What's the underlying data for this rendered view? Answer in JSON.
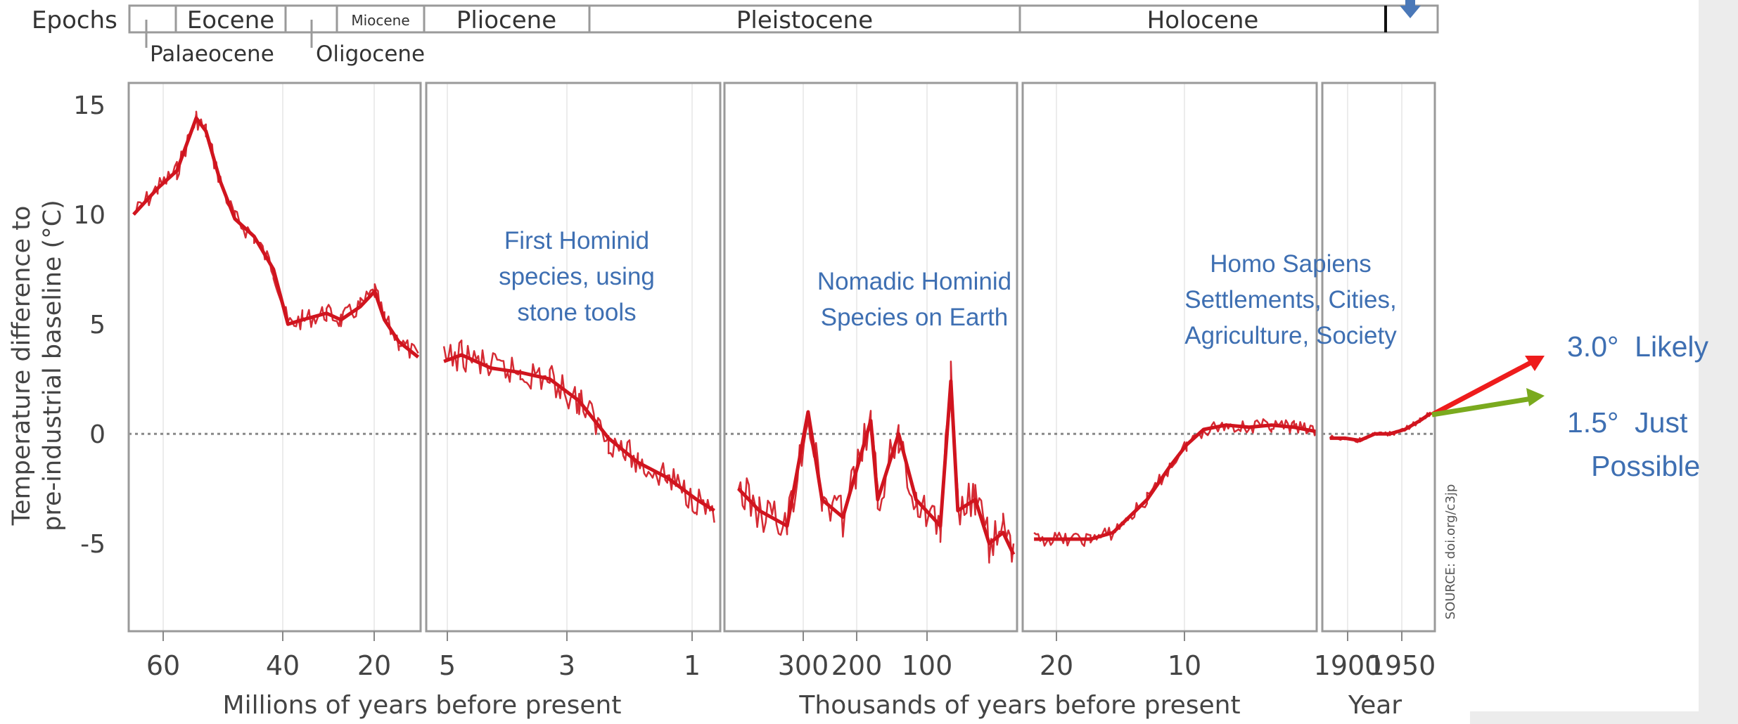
{
  "chart_data": {
    "type": "line",
    "ylabel": "Temperature difference to\npre-industrial baseline (°C)",
    "yticks": [
      15,
      10,
      5,
      0,
      -5
    ],
    "ylim": [
      -9,
      16
    ],
    "source": "SOURCE: doi.org/c3jp",
    "epochs_label": "Epochs",
    "epochs": [
      {
        "name": "Palaeocene",
        "row": "lower"
      },
      {
        "name": "Eocene",
        "row": "upper"
      },
      {
        "name": "Oligocene",
        "row": "lower"
      },
      {
        "name": "Miocene",
        "row": "upper",
        "small": true
      },
      {
        "name": "Pliocene",
        "row": "upper"
      },
      {
        "name": "Pleistocene",
        "row": "upper"
      },
      {
        "name": "Holocene",
        "row": "upper"
      }
    ],
    "panels": [
      {
        "id": "millions-1",
        "ticks": [
          "60",
          "40",
          "20"
        ],
        "series": [
          {
            "x": 65,
            "y": 10
          },
          {
            "x": 60,
            "y": 11.2
          },
          {
            "x": 56,
            "y": 12
          },
          {
            "x": 52,
            "y": 14.4
          },
          {
            "x": 50,
            "y": 13.8
          },
          {
            "x": 47,
            "y": 11.5
          },
          {
            "x": 44,
            "y": 9.8
          },
          {
            "x": 40,
            "y": 9
          },
          {
            "x": 36,
            "y": 7.5
          },
          {
            "x": 33,
            "y": 5
          },
          {
            "x": 30,
            "y": 5.2
          },
          {
            "x": 25,
            "y": 5.5
          },
          {
            "x": 22,
            "y": 5.2
          },
          {
            "x": 18,
            "y": 5.8
          },
          {
            "x": 15,
            "y": 6.5
          },
          {
            "x": 13,
            "y": 5.2
          },
          {
            "x": 10,
            "y": 4.2
          },
          {
            "x": 6,
            "y": 3.5
          }
        ]
      },
      {
        "id": "millions-2",
        "ticks": [
          "5",
          "3",
          "1"
        ],
        "series": [
          {
            "x": 5.3,
            "y": 3.3
          },
          {
            "x": 5,
            "y": 3.6
          },
          {
            "x": 4.5,
            "y": 3
          },
          {
            "x": 4,
            "y": 2.8
          },
          {
            "x": 3.5,
            "y": 2.5
          },
          {
            "x": 3,
            "y": 1.5
          },
          {
            "x": 2.5,
            "y": -0.2
          },
          {
            "x": 2,
            "y": -1.3
          },
          {
            "x": 1.5,
            "y": -2
          },
          {
            "x": 1,
            "y": -3
          },
          {
            "x": 0.7,
            "y": -3.5
          }
        ]
      },
      {
        "id": "thousands-1",
        "ticks": [
          "300",
          "200",
          "100"
        ],
        "series": [
          {
            "x": 430,
            "y": -2.5
          },
          {
            "x": 400,
            "y": -3.5
          },
          {
            "x": 360,
            "y": -4.2
          },
          {
            "x": 330,
            "y": 1
          },
          {
            "x": 310,
            "y": -3
          },
          {
            "x": 280,
            "y": -3.8
          },
          {
            "x": 240,
            "y": 0.6
          },
          {
            "x": 230,
            "y": -3
          },
          {
            "x": 200,
            "y": 0
          },
          {
            "x": 175,
            "y": -3
          },
          {
            "x": 140,
            "y": -4.2
          },
          {
            "x": 125,
            "y": 2.4
          },
          {
            "x": 115,
            "y": -3.5
          },
          {
            "x": 90,
            "y": -3
          },
          {
            "x": 70,
            "y": -5
          },
          {
            "x": 50,
            "y": -4.5
          },
          {
            "x": 35,
            "y": -5.5
          }
        ]
      },
      {
        "id": "thousands-2",
        "ticks": [
          "20",
          "10"
        ],
        "series": [
          {
            "x": 25,
            "y": -4.8
          },
          {
            "x": 20,
            "y": -4.8
          },
          {
            "x": 18,
            "y": -4.5
          },
          {
            "x": 15,
            "y": -3
          },
          {
            "x": 13,
            "y": -1.5
          },
          {
            "x": 11.5,
            "y": -0.5
          },
          {
            "x": 10,
            "y": 0.2
          },
          {
            "x": 8,
            "y": 0.4
          },
          {
            "x": 6,
            "y": 0.3
          },
          {
            "x": 4,
            "y": 0.4
          },
          {
            "x": 2,
            "y": 0.3
          },
          {
            "x": 0,
            "y": 0.1
          }
        ]
      },
      {
        "id": "years",
        "ticks": [
          "1900",
          "1950"
        ],
        "series": [
          {
            "x": 1880,
            "y": -0.2
          },
          {
            "x": 1900,
            "y": -0.2
          },
          {
            "x": 1920,
            "y": -0.3
          },
          {
            "x": 1940,
            "y": 0
          },
          {
            "x": 1960,
            "y": 0
          },
          {
            "x": 1980,
            "y": 0.2
          },
          {
            "x": 2000,
            "y": 0.6
          },
          {
            "x": 2015,
            "y": 0.95
          }
        ]
      }
    ],
    "axis_titles": [
      "Millions of years before present",
      "Thousands of years before present",
      "Year"
    ],
    "annotations": [
      "First Hominid\nspecies, using\nstone tools",
      "Nomadic Hominid\nSpecies on Earth",
      "Homo Sapiens\nSettlements, Cities,\nAgriculture, Society"
    ],
    "projections": [
      {
        "label": "3.0°  Likely",
        "color": "#ee1c1c"
      },
      {
        "label": "1.5°  Just\n   Possible",
        "color": "#7aaa1e"
      }
    ],
    "colors": {
      "series": "#d0141e",
      "annotation": "#3e6fb2",
      "zero_line": "#888888",
      "frame": "#9a9a9a"
    }
  }
}
